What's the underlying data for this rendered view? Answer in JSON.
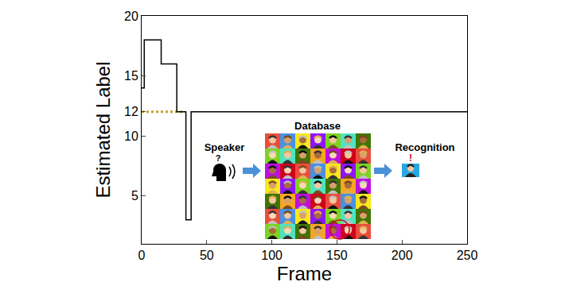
{
  "chart_data": {
    "type": "line",
    "x_label": "Frame",
    "y_label": "Estimated Label",
    "xlim": [
      0,
      250
    ],
    "ylim": [
      1,
      20
    ],
    "xticks": [
      0,
      50,
      100,
      150,
      200,
      250
    ],
    "yticks": [
      5,
      10,
      12,
      15,
      20
    ],
    "grid": false,
    "series": [
      {
        "x": [
          0,
          2,
          15,
          27,
          34,
          38,
          250
        ],
        "values": [
          14,
          18,
          16,
          12,
          3,
          12,
          12
        ],
        "color": "#000000",
        "line_style": "step"
      },
      {
        "x": [
          0,
          33
        ],
        "values": [
          12,
          12
        ],
        "color": "#c8a02a",
        "line_style": "dotted"
      }
    ],
    "inset": {
      "speaker_label": "Speaker",
      "speaker_mark": "?",
      "database_label": "Database",
      "recognition_label": "Recognition",
      "recognition_mark": "!"
    }
  }
}
